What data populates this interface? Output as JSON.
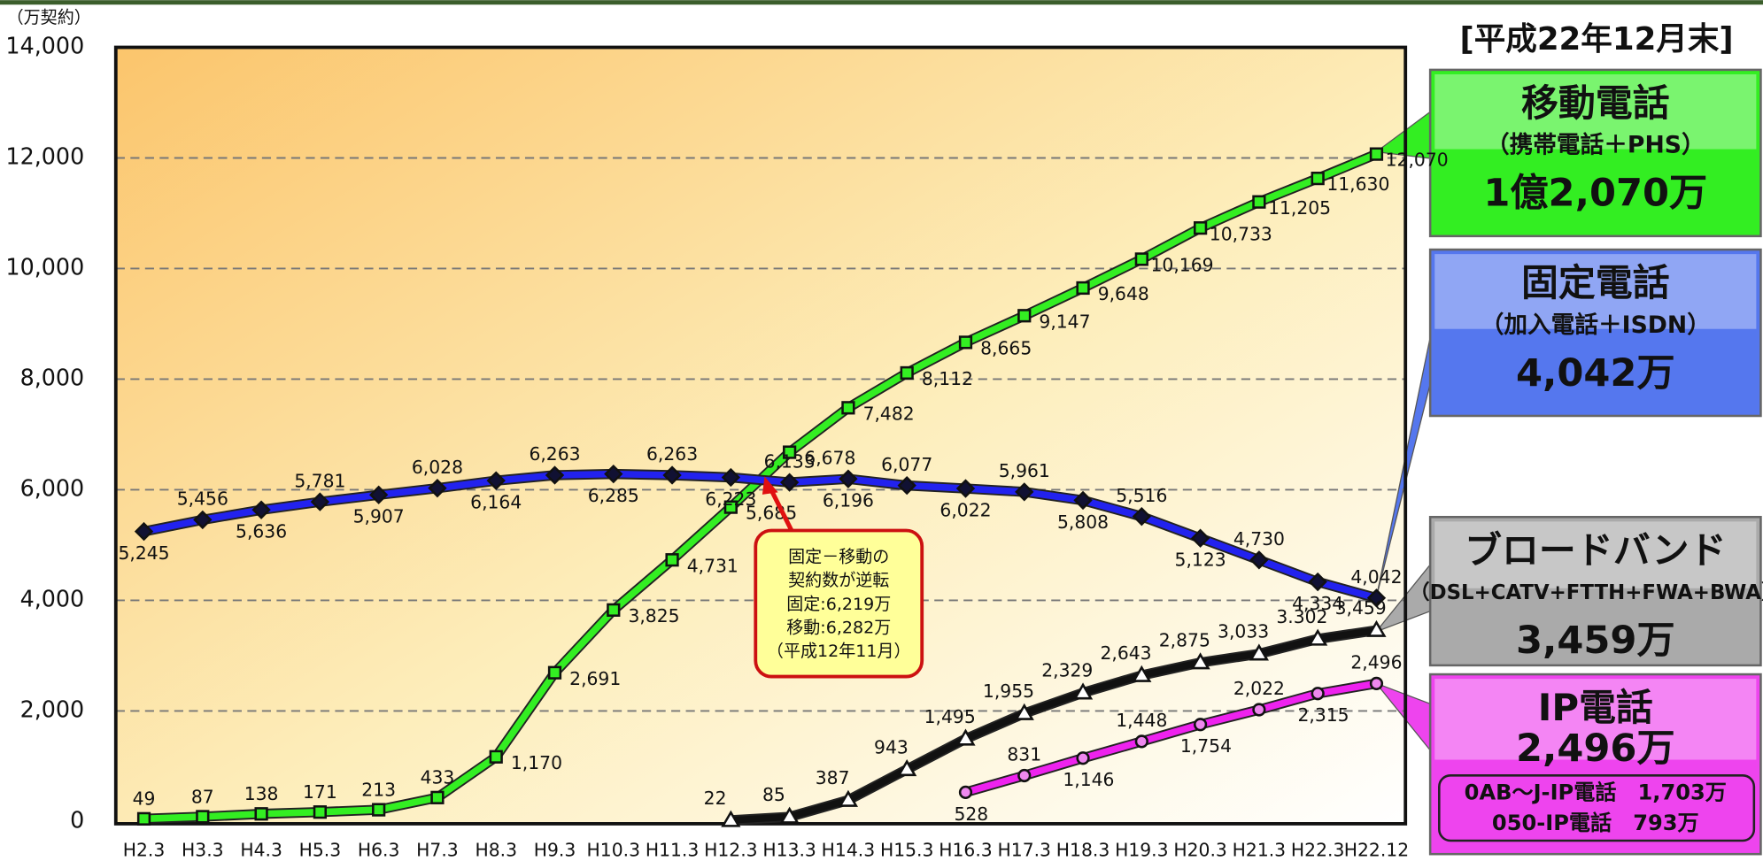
{
  "chart_data": {
    "type": "line",
    "y_unit_label": "（万契約）",
    "as_of": "[平成22年12月末]",
    "categories": [
      "H2.3",
      "H3.3",
      "H4.3",
      "H5.3",
      "H6.3",
      "H7.3",
      "H8.3",
      "H9.3",
      "H10.3",
      "H11.3",
      "H12.3",
      "H13.3",
      "H14.3",
      "H15.3",
      "H16.3",
      "H17.3",
      "H18.3",
      "H19.3",
      "H20.3",
      "H21.3",
      "H22.3",
      "H22.12"
    ],
    "ylim": [
      0,
      14000
    ],
    "yticks": [
      {
        "value": 0,
        "label": "0"
      },
      {
        "value": 2000,
        "label": "2,000"
      },
      {
        "value": 4000,
        "label": "4,000"
      },
      {
        "value": 6000,
        "label": "6,000"
      },
      {
        "value": 8000,
        "label": "8,000"
      },
      {
        "value": 10000,
        "label": "10,000"
      },
      {
        "value": 12000,
        "label": "12,000"
      },
      {
        "value": 14000,
        "label": "14,000"
      }
    ],
    "grid": true,
    "series": [
      {
        "name": "移動電話",
        "color": "#33ee22",
        "marker": "square",
        "marker_fill": "#33ee22",
        "values": [
          49,
          87,
          138,
          171,
          213,
          433,
          1170,
          2691,
          3825,
          4731,
          5685,
          6678,
          7482,
          8112,
          8665,
          9147,
          9648,
          10169,
          10733,
          11205,
          11630,
          12070
        ],
        "value_labels": [
          "49",
          "87",
          "138",
          "171",
          "213",
          "433",
          "1,170",
          "2,691",
          "3,825",
          "4,731",
          "5,685",
          "6,678",
          "7,482",
          "8,112",
          "8,665",
          "9,147",
          "9,648",
          "10,169",
          "10,733",
          "11,205",
          "11,630",
          "12,070"
        ],
        "note": "（携帯電話＋PHS）",
        "total": "1億2,070万",
        "box_color": "#33ee22"
      },
      {
        "name": "固定電話",
        "color": "#2222ee",
        "marker": "diamond",
        "marker_fill": "#111133",
        "values": [
          5245,
          5456,
          5636,
          5781,
          5907,
          6028,
          6164,
          6263,
          6285,
          6263,
          6223,
          6133,
          6196,
          6077,
          6022,
          5961,
          5808,
          5516,
          5123,
          4730,
          4334,
          4042
        ],
        "value_labels": [
          "5,245",
          "5,456",
          "5,636",
          "5,781",
          "5,907",
          "6,028",
          "6,164",
          "6,263",
          "6,285",
          "6,263",
          "6,223",
          "6,133",
          "6,196",
          "6,077",
          "6,022",
          "5,961",
          "5,808",
          "5,516",
          "5,123",
          "4,730",
          "4,334",
          "4,042"
        ],
        "note": "（加入電話＋ISDN）",
        "total": "4,042万",
        "box_color": "#5577ee"
      },
      {
        "name": "ブロードバンド",
        "color": "#111111",
        "marker": "triangle",
        "marker_fill": "#ffffff",
        "values": [
          null,
          null,
          null,
          null,
          null,
          null,
          null,
          null,
          null,
          null,
          22,
          85,
          387,
          943,
          1495,
          1955,
          2329,
          2643,
          2875,
          3033,
          3302,
          3459
        ],
        "value_labels": [
          null,
          null,
          null,
          null,
          null,
          null,
          null,
          null,
          null,
          null,
          "22",
          "85",
          "387",
          "943",
          "1,495",
          "1,955",
          "2,329",
          "2,643",
          "2,875",
          "3,033",
          "3.302",
          "3,459"
        ],
        "note": "（DSL+CATV+FTTH+FWA+BWA）",
        "total": "3,459万",
        "box_color": "#aaaaaa"
      },
      {
        "name": "IP電話",
        "color": "#ee22ee",
        "marker": "circle",
        "marker_fill": "#ee88ee",
        "values": [
          null,
          null,
          null,
          null,
          null,
          null,
          null,
          null,
          null,
          null,
          null,
          null,
          null,
          null,
          528,
          831,
          1146,
          1448,
          1754,
          2022,
          2315,
          2496
        ],
        "value_labels": [
          null,
          null,
          null,
          null,
          null,
          null,
          null,
          null,
          null,
          null,
          null,
          null,
          null,
          null,
          "528",
          "831",
          "1,146",
          "1,448",
          "1,754",
          "2,022",
          "2,315",
          "2,496"
        ],
        "total": "2,496万",
        "details": [
          "0AB～J-IP電話　1,703万",
          "050-IP電話　793万"
        ],
        "box_color": "#ee44ee"
      }
    ],
    "annotation": [
      "固定－移動の",
      "契約数が逆転",
      "固定:6,219万",
      "移動:6,282万",
      "（平成12年11月）"
    ]
  }
}
